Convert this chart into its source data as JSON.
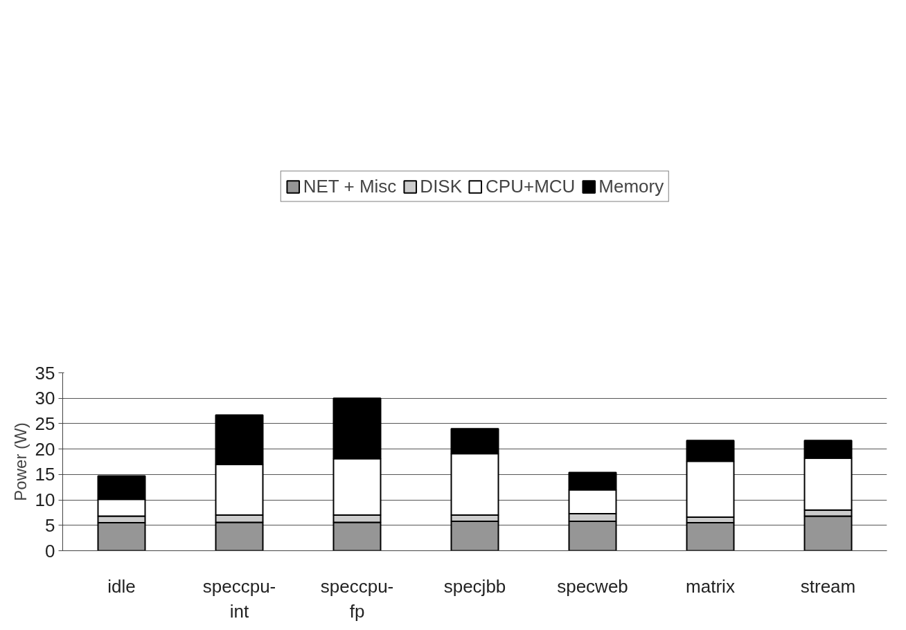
{
  "chart_data": {
    "type": "bar",
    "stacked": true,
    "ylabel": "Power (W)",
    "categories": [
      "idle",
      "speccpu-int",
      "speccpu-fp",
      "specjbb",
      "specweb",
      "matrix",
      "stream"
    ],
    "series": [
      {
        "name": "NET + Misc",
        "color": "#969696",
        "values": [
          5.5,
          5.6,
          5.6,
          5.8,
          5.8,
          5.5,
          6.8
        ]
      },
      {
        "name": "DISK",
        "color": "#cccccc",
        "values": [
          1.3,
          1.4,
          1.4,
          1.2,
          1.5,
          1.1,
          1.2
        ]
      },
      {
        "name": "CPU+MCU",
        "color": "#ffffff",
        "values": [
          3.3,
          10.0,
          11.1,
          12.1,
          4.7,
          11.0,
          10.2
        ]
      },
      {
        "name": "Memory",
        "color": "#000000",
        "values": [
          4.6,
          9.7,
          11.9,
          4.9,
          3.4,
          4.1,
          3.5
        ]
      }
    ],
    "ylim": [
      0,
      35
    ],
    "yticks": [
      0,
      5,
      10,
      15,
      20,
      25,
      30,
      35
    ],
    "grid": "y",
    "legend": "top"
  }
}
